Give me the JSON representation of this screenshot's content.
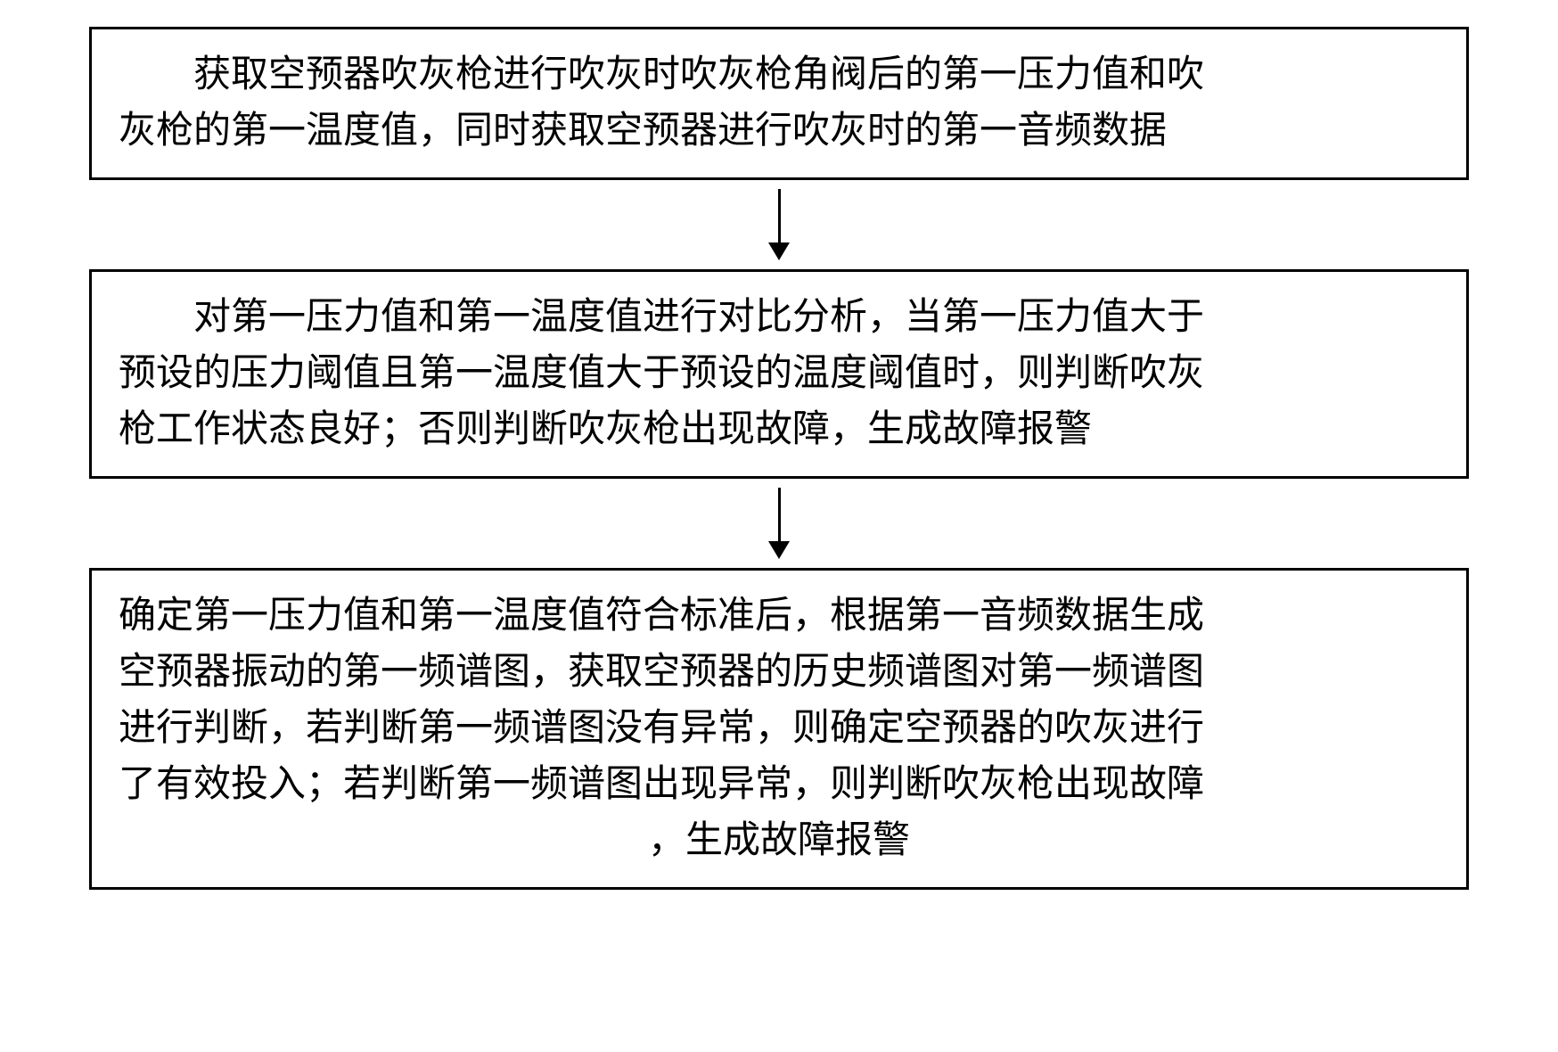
{
  "flowchart": {
    "type": "flowchart",
    "background_color": "#ffffff",
    "box_border_color": "#000000",
    "box_border_width": 3,
    "arrow_color": "#000000",
    "font_size": 42,
    "font_family": "KaiTi",
    "text_color": "#000000",
    "boxes": [
      {
        "id": "box1",
        "lines": [
          "获取空预器吹灰枪进行吹灰时吹灰枪角阀后的第一压力值和吹",
          "灰枪的第一温度值，同时获取空预器进行吹灰时的第一音频数据"
        ]
      },
      {
        "id": "box2",
        "lines": [
          "对第一压力值和第一温度值进行对比分析，当第一压力值大于",
          "预设的压力阈值且第一温度值大于预设的温度阈值时，则判断吹灰",
          "枪工作状态良好；否则判断吹灰枪出现故障，生成故障报警"
        ]
      },
      {
        "id": "box3",
        "lines": [
          "确定第一压力值和第一温度值符合标准后，根据第一音频数据生成",
          "空预器振动的第一频谱图，获取空预器的历史频谱图对第一频谱图",
          "进行判断，若判断第一频谱图没有异常，则确定空预器的吹灰进行",
          "了有效投入；若判断第一频谱图出现异常，则判断吹灰枪出现故障",
          "，生成故障报警"
        ]
      }
    ],
    "arrows": [
      {
        "from": "box1",
        "to": "box2"
      },
      {
        "from": "box2",
        "to": "box3"
      }
    ]
  }
}
